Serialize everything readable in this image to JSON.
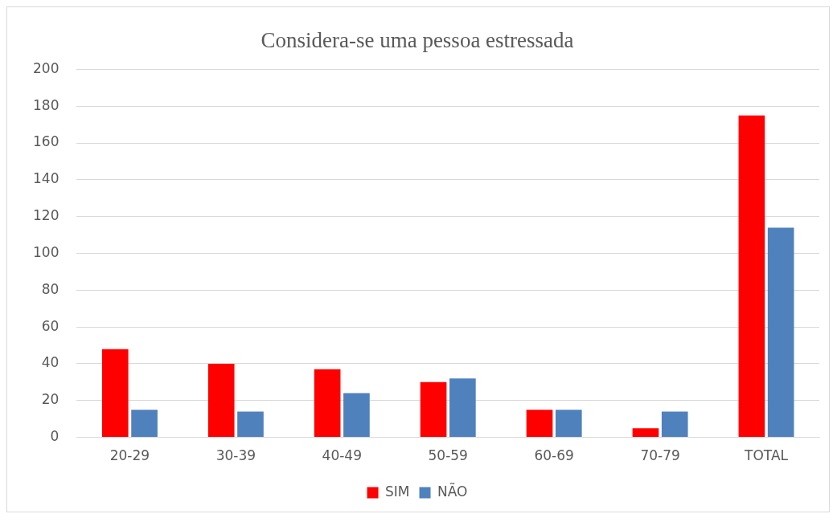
{
  "chart_data": {
    "type": "bar",
    "title": "Considera-se uma pessoa estressada",
    "categories": [
      "20-29",
      "30-39",
      "40-49",
      "50-59",
      "60-69",
      "70-79",
      "TOTAL"
    ],
    "series": [
      {
        "name": "SIM",
        "color": "#ff0000",
        "values": [
          48,
          40,
          37,
          30,
          15,
          5,
          175
        ]
      },
      {
        "name": "NÃO",
        "color": "#4f81bd",
        "values": [
          15,
          14,
          24,
          32,
          15,
          14,
          114
        ]
      }
    ],
    "ylim": [
      0,
      200
    ],
    "yticks": [
      0,
      20,
      40,
      60,
      80,
      100,
      120,
      140,
      160,
      180,
      200
    ],
    "grid": "y",
    "legend": "bottom"
  }
}
